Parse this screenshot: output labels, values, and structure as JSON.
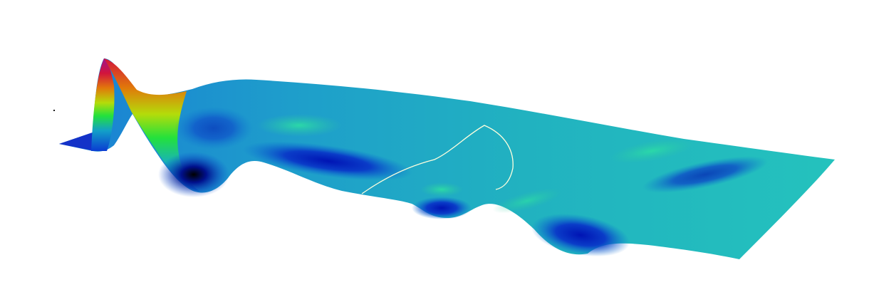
{
  "scene": {
    "background": "#ffffff",
    "colormap": [
      "#000000",
      "#0010c8",
      "#0a78d2",
      "#19aab4",
      "#2ec8a0",
      "#23e13c",
      "#b4dc0a",
      "#e1780a",
      "#d2143c",
      "#a0148c"
    ],
    "outline_color": "#ffffde",
    "marker_color": "#1a1a1a"
  }
}
